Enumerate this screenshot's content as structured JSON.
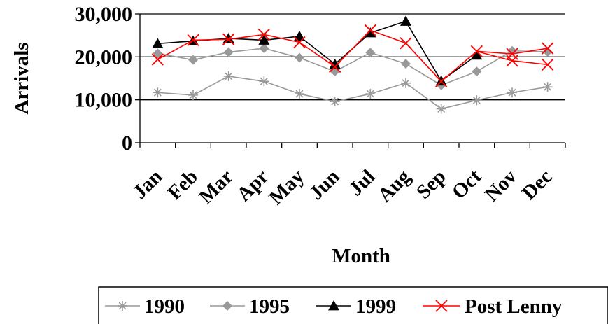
{
  "chart_data": {
    "type": "line",
    "title": "",
    "xlabel": "Month",
    "ylabel": "Arrivals",
    "categories": [
      "Jan",
      "Feb",
      "Mar",
      "Apr",
      "May",
      "Jun",
      "Jul",
      "Aug",
      "Sep",
      "Oct",
      "Nov",
      "Dec"
    ],
    "ylim": [
      0,
      30000
    ],
    "yticks": [
      0,
      10000,
      20000,
      30000
    ],
    "ytick_labels": [
      "0",
      "10,000",
      "20,000",
      "30,000"
    ],
    "grid": "horizontal major gridlines",
    "legend": "bottom",
    "series": [
      {
        "name": "1990",
        "color": "#999999",
        "marker": "asterisk",
        "values": [
          11700,
          11100,
          15500,
          14300,
          11400,
          9600,
          11400,
          13900,
          7900,
          9900,
          11700,
          13000
        ]
      },
      {
        "name": "1995",
        "color": "#999999",
        "marker": "diamond",
        "values": [
          20800,
          19300,
          21100,
          22000,
          19800,
          16600,
          21000,
          18400,
          13400,
          16600,
          21400,
          21200
        ]
      },
      {
        "name": "1999",
        "color": "#000000",
        "marker": "triangle",
        "values": [
          23100,
          23700,
          24300,
          23900,
          24800,
          18300,
          25600,
          28300,
          14400,
          20400,
          null,
          null
        ]
      },
      {
        "name": "Post Lenny",
        "color": "#ff0000",
        "marker": "x",
        "values": [
          19400,
          23900,
          24100,
          25200,
          23400,
          17700,
          26200,
          23200,
          14300,
          21300,
          19100,
          18200
        ]
      }
    ],
    "series_extra_points": [
      {
        "series": "Post Lenny",
        "values_second_trace": [
          null,
          null,
          null,
          null,
          null,
          null,
          null,
          null,
          null,
          null,
          20700,
          22000
        ]
      }
    ]
  }
}
